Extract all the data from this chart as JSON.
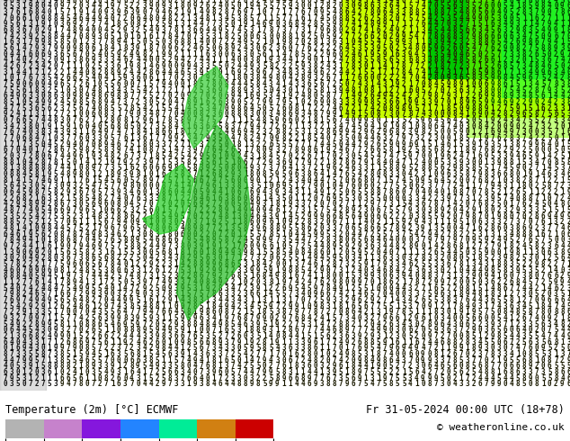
{
  "title_left": "Temperature (2m) [°C] ECMWF",
  "title_right": "Fr 31-05-2024 00:00 UTC (18+78)",
  "copyright": "© weatheronline.co.uk",
  "colorbar_ticks": [
    -28,
    -22,
    -10,
    0,
    12,
    26,
    38,
    48
  ],
  "colorbar_colors": [
    "#b0b0b0",
    "#c896c8",
    "#a000c8",
    "#4646ff",
    "#00c8ff",
    "#00ff64",
    "#c8ff00",
    "#ffff00",
    "#ffc800",
    "#ff6400",
    "#c80000",
    "#960000"
  ],
  "colorbar_boundaries": [
    -28,
    -22,
    -10,
    0,
    12,
    26,
    38,
    48
  ],
  "bg_color": "#ffffff",
  "text_color": "#000000",
  "map_bg_yellow": "#ffff00",
  "bottom_bar_height": 0.115,
  "figsize": [
    6.34,
    4.9
  ],
  "dpi": 100
}
